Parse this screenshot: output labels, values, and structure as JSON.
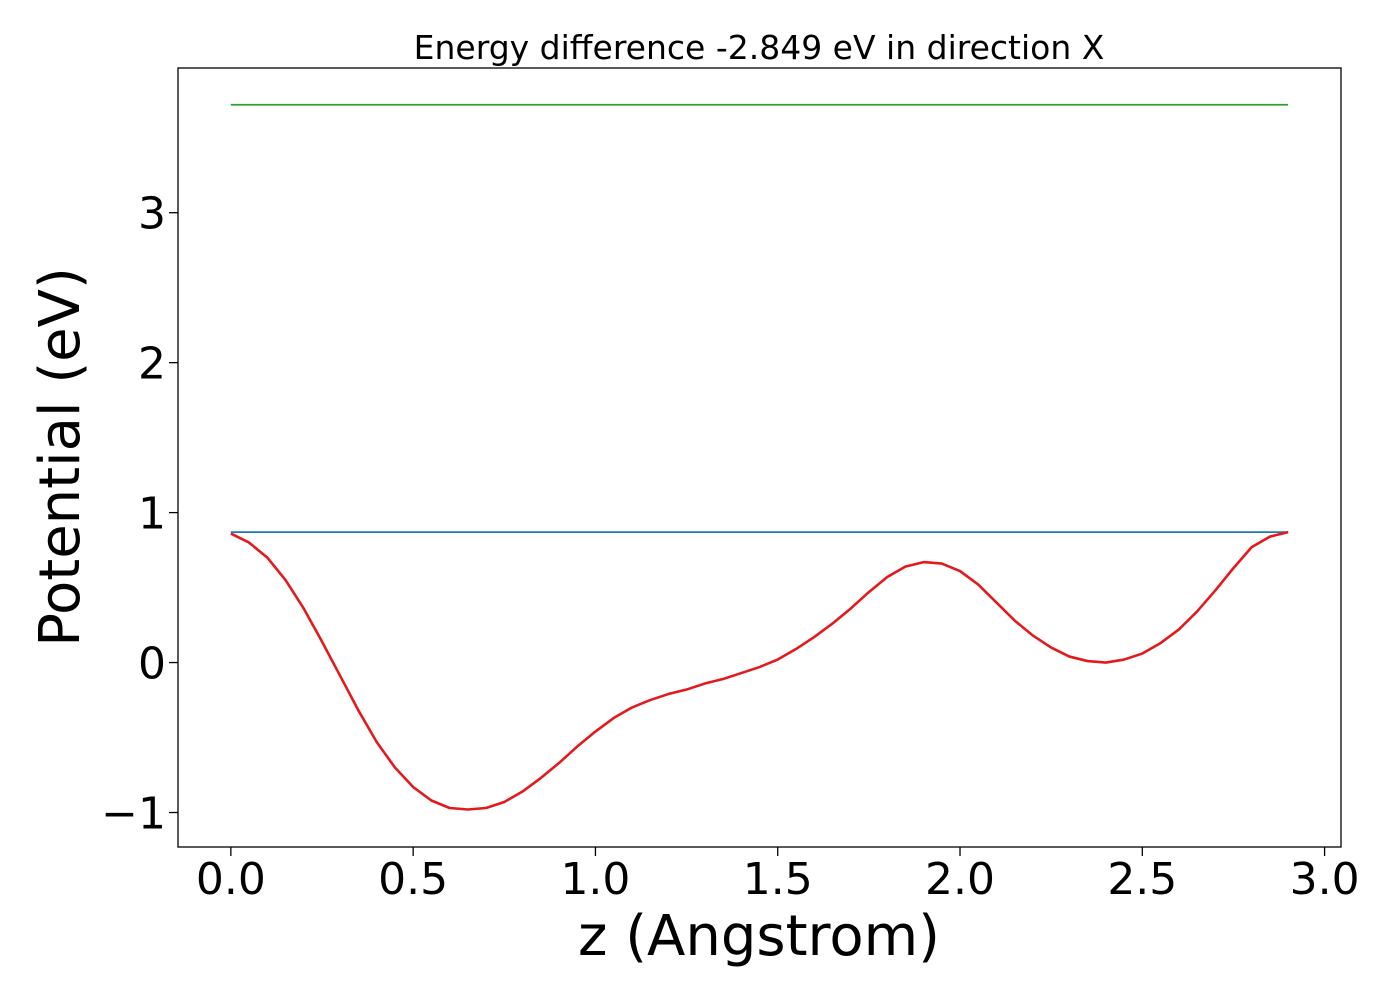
{
  "chart_data": {
    "type": "line",
    "title": "Energy difference -2.849 eV in direction X",
    "xlabel": "z (Angstrom)",
    "ylabel": "Potential (eV)",
    "xlim": [
      -0.145,
      3.045
    ],
    "ylim": [
      -1.23,
      3.965
    ],
    "xticks": [
      0.0,
      0.5,
      1.0,
      1.5,
      2.0,
      2.5,
      3.0
    ],
    "xtick_labels": [
      "0.0",
      "0.5",
      "1.0",
      "1.5",
      "2.0",
      "2.5",
      "3.0"
    ],
    "yticks": [
      -1,
      0,
      1,
      2,
      3
    ],
    "ytick_labels": [
      "−1",
      "0",
      "1",
      "2",
      "3"
    ],
    "grid": false,
    "legend": "none",
    "series": [
      {
        "color": "#e31a1c",
        "x": [
          0.0,
          0.05,
          0.1,
          0.15,
          0.2,
          0.25,
          0.3,
          0.35,
          0.4,
          0.45,
          0.5,
          0.55,
          0.6,
          0.65,
          0.7,
          0.75,
          0.8,
          0.85,
          0.9,
          0.95,
          1.0,
          1.05,
          1.1,
          1.15,
          1.2,
          1.25,
          1.3,
          1.35,
          1.4,
          1.45,
          1.5,
          1.55,
          1.6,
          1.65,
          1.7,
          1.75,
          1.8,
          1.85,
          1.9,
          1.95,
          2.0,
          2.05,
          2.1,
          2.15,
          2.2,
          2.25,
          2.3,
          2.35,
          2.4,
          2.45,
          2.5,
          2.55,
          2.6,
          2.65,
          2.7,
          2.75,
          2.8,
          2.85,
          2.9
        ],
        "y": [
          0.86,
          0.8,
          0.7,
          0.55,
          0.36,
          0.14,
          -0.09,
          -0.32,
          -0.53,
          -0.7,
          -0.83,
          -0.92,
          -0.97,
          -0.98,
          -0.97,
          -0.93,
          -0.86,
          -0.77,
          -0.67,
          -0.56,
          -0.46,
          -0.37,
          -0.3,
          -0.25,
          -0.21,
          -0.18,
          -0.14,
          -0.11,
          -0.07,
          -0.03,
          0.02,
          0.09,
          0.17,
          0.26,
          0.36,
          0.47,
          0.57,
          0.64,
          0.67,
          0.66,
          0.61,
          0.52,
          0.4,
          0.28,
          0.18,
          0.1,
          0.04,
          0.01,
          0.0,
          0.02,
          0.06,
          0.13,
          0.22,
          0.34,
          0.48,
          0.63,
          0.77,
          0.84,
          0.87
        ]
      },
      {
        "color": "#1f77b4",
        "x": [
          0.0,
          2.9
        ],
        "y": [
          0.87,
          0.87
        ]
      },
      {
        "color": "#2ca02c",
        "x": [
          0.0,
          2.9
        ],
        "y": [
          3.72,
          3.72
        ]
      }
    ]
  }
}
